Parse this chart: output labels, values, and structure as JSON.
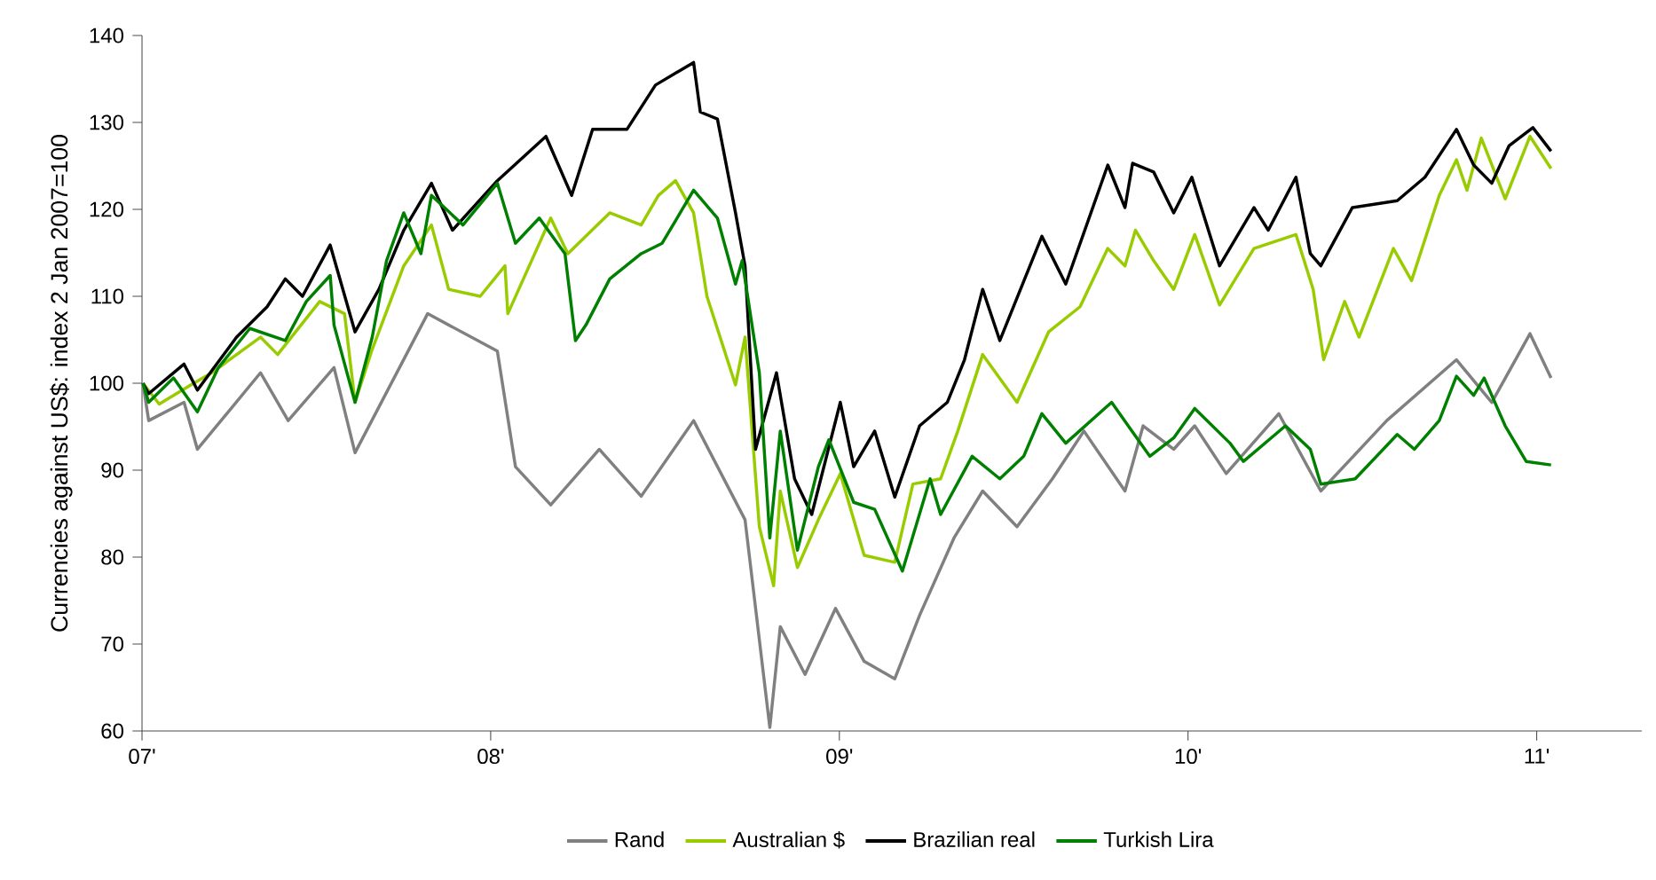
{
  "chart_data": {
    "type": "line",
    "ylabel": "Currencies against US$: index 2 Jan 2007=100",
    "xlim": [
      "2007-01-01",
      "2011-04-21"
    ],
    "xticks": [
      {
        "value": "2007-01-01",
        "label": "07'"
      },
      {
        "value": "2008-01-01",
        "label": "08'"
      },
      {
        "value": "2009-01-01",
        "label": "09'"
      },
      {
        "value": "2010-01-01",
        "label": "10'"
      },
      {
        "value": "2011-01-01",
        "label": "11'"
      }
    ],
    "ylim": [
      60,
      140
    ],
    "yticks": [
      60,
      70,
      80,
      90,
      100,
      110,
      120,
      130,
      140
    ],
    "grid": false,
    "legend": "bottom",
    "marker": "none",
    "line_style": "solid",
    "series": [
      {
        "name": "Rand",
        "color": "#808080",
        "x": [
          "2007-01-02",
          "2007-01-08",
          "2007-02-14",
          "2007-02-28",
          "2007-05-05",
          "2007-06-03",
          "2007-07-21",
          "2007-08-12",
          "2007-10-27",
          "2008-01-08",
          "2008-01-27",
          "2008-03-04",
          "2008-04-24",
          "2008-06-07",
          "2008-08-01",
          "2008-09-24",
          "2008-10-20",
          "2008-10-31",
          "2008-11-26",
          "2008-12-28",
          "2009-01-27",
          "2009-02-28",
          "2009-03-26",
          "2009-05-01",
          "2009-05-31",
          "2009-07-06",
          "2009-08-12",
          "2009-09-14",
          "2009-10-27",
          "2009-11-15",
          "2009-12-17",
          "2010-01-08",
          "2010-02-10",
          "2010-04-06",
          "2010-05-20",
          "2010-07-28",
          "2010-10-09",
          "2010-11-15",
          "2010-12-25",
          "2011-01-16"
        ],
        "values": [
          100,
          95.7,
          97.8,
          92.4,
          101.2,
          95.7,
          101.8,
          92.0,
          108.0,
          103.7,
          90.4,
          86,
          92.4,
          87,
          95.7,
          84.3,
          60.4,
          72,
          66.5,
          74.1,
          68,
          66,
          73.3,
          82.2,
          87.6,
          83.5,
          89,
          94.5,
          87.6,
          95.1,
          92.4,
          95.1,
          89.6,
          96.5,
          87.6,
          95.7,
          102.7,
          97.8,
          105.7,
          100.6
        ]
      },
      {
        "name": "Australian $",
        "color": "#99cc00",
        "x": [
          "2007-01-02",
          "2007-01-19",
          "2007-02-21",
          "2007-03-15",
          "2007-05-05",
          "2007-05-23",
          "2007-07-06",
          "2007-08-01",
          "2007-08-12",
          "2007-08-30",
          "2007-10-02",
          "2007-10-31",
          "2007-11-18",
          "2007-12-21",
          "2008-01-16",
          "2008-01-19",
          "2008-03-04",
          "2008-03-22",
          "2008-05-05",
          "2008-06-07",
          "2008-06-25",
          "2008-07-13",
          "2008-08-01",
          "2008-08-15",
          "2008-09-14",
          "2008-09-24",
          "2008-10-09",
          "2008-10-24",
          "2008-10-31",
          "2008-11-18",
          "2008-12-10",
          "2009-01-02",
          "2009-01-27",
          "2009-02-28",
          "2009-03-19",
          "2009-04-17",
          "2009-05-05",
          "2009-05-31",
          "2009-07-06",
          "2009-08-08",
          "2009-09-10",
          "2009-10-09",
          "2009-10-27",
          "2009-11-07",
          "2009-11-26",
          "2009-12-17",
          "2010-01-08",
          "2010-02-03",
          "2010-03-11",
          "2010-04-24",
          "2010-05-12",
          "2010-05-23",
          "2010-06-14",
          "2010-06-29",
          "2010-08-04",
          "2010-08-23",
          "2010-09-21",
          "2010-10-09",
          "2010-10-20",
          "2010-11-04",
          "2010-11-29",
          "2010-12-25",
          "2011-01-16"
        ],
        "values": [
          100,
          97.6,
          99.8,
          101.2,
          105.3,
          103.3,
          109.4,
          108,
          97.8,
          103.9,
          113.5,
          118.2,
          110.8,
          110,
          113.5,
          108,
          119,
          114.9,
          119.6,
          118.2,
          121.6,
          123.3,
          119.6,
          110,
          99.8,
          105.3,
          83.5,
          76.7,
          87.6,
          78.8,
          84.3,
          89.6,
          80.2,
          79.4,
          88.4,
          89,
          94.5,
          103.3,
          97.8,
          105.9,
          108.8,
          115.5,
          113.5,
          117.6,
          114.1,
          110.8,
          117.1,
          109,
          115.5,
          117.1,
          110.8,
          102.7,
          109.4,
          105.3,
          115.5,
          111.8,
          121.6,
          125.7,
          122.2,
          128.2,
          121.2,
          128.4,
          124.7
        ]
      },
      {
        "name": "Brazilian real",
        "color": "#000000",
        "x": [
          "2007-01-02",
          "2007-01-08",
          "2007-02-14",
          "2007-02-28",
          "2007-04-10",
          "2007-05-12",
          "2007-05-31",
          "2007-06-18",
          "2007-07-17",
          "2007-08-12",
          "2007-09-06",
          "2007-10-02",
          "2007-10-31",
          "2007-11-22",
          "2008-01-08",
          "2008-02-28",
          "2008-03-26",
          "2008-04-17",
          "2008-05-23",
          "2008-06-22",
          "2008-08-01",
          "2008-08-08",
          "2008-08-26",
          "2008-09-14",
          "2008-09-24",
          "2008-10-05",
          "2008-10-27",
          "2008-11-15",
          "2008-12-03",
          "2009-01-02",
          "2009-01-16",
          "2009-02-07",
          "2009-02-28",
          "2009-03-26",
          "2009-04-24",
          "2009-05-12",
          "2009-05-31",
          "2009-06-18",
          "2009-08-01",
          "2009-08-26",
          "2009-10-09",
          "2009-10-27",
          "2009-11-04",
          "2009-11-26",
          "2009-12-17",
          "2010-01-05",
          "2010-02-03",
          "2010-03-11",
          "2010-03-26",
          "2010-04-24",
          "2010-05-09",
          "2010-05-20",
          "2010-06-22",
          "2010-08-08",
          "2010-09-06",
          "2010-10-09",
          "2010-10-27",
          "2010-11-15",
          "2010-12-03",
          "2010-12-28",
          "2011-01-16"
        ],
        "values": [
          100,
          98.8,
          102.2,
          99.2,
          105.3,
          108.8,
          112,
          110,
          115.9,
          105.9,
          110.8,
          117.6,
          123,
          117.6,
          123.3,
          128.4,
          121.6,
          129.2,
          129.2,
          134.3,
          136.9,
          131.2,
          130.4,
          119.6,
          113.5,
          92.4,
          101.2,
          89,
          84.9,
          97.8,
          90.4,
          94.5,
          86.9,
          95.1,
          97.8,
          102.7,
          110.8,
          104.9,
          116.9,
          111.4,
          125.1,
          120.2,
          125.3,
          124.3,
          119.6,
          123.7,
          113.5,
          120.2,
          117.6,
          123.7,
          114.9,
          113.5,
          120.2,
          121,
          123.7,
          129.2,
          125.1,
          123,
          127.3,
          129.4,
          126.7
        ]
      },
      {
        "name": "Turkish Lira",
        "color": "#008000",
        "x": [
          "2007-01-02",
          "2007-01-08",
          "2007-02-03",
          "2007-02-28",
          "2007-03-22",
          "2007-04-24",
          "2007-05-31",
          "2007-06-22",
          "2007-07-17",
          "2007-07-21",
          "2007-08-12",
          "2007-08-30",
          "2007-09-14",
          "2007-10-02",
          "2007-10-20",
          "2007-10-31",
          "2007-12-03",
          "2008-01-08",
          "2008-01-27",
          "2008-02-21",
          "2008-03-19",
          "2008-03-30",
          "2008-04-10",
          "2008-05-05",
          "2008-06-07",
          "2008-06-29",
          "2008-08-01",
          "2008-08-26",
          "2008-09-14",
          "2008-09-21",
          "2008-10-09",
          "2008-10-20",
          "2008-10-31",
          "2008-11-18",
          "2008-12-10",
          "2008-12-21",
          "2009-01-16",
          "2009-02-07",
          "2009-03-08",
          "2009-04-06",
          "2009-04-17",
          "2009-05-20",
          "2009-06-18",
          "2009-07-13",
          "2009-08-01",
          "2009-08-26",
          "2009-10-13",
          "2009-11-22",
          "2009-12-17",
          "2010-01-08",
          "2010-02-14",
          "2010-02-28",
          "2010-04-13",
          "2010-05-09",
          "2010-05-20",
          "2010-06-25",
          "2010-08-08",
          "2010-08-26",
          "2010-09-21",
          "2010-10-09",
          "2010-10-27",
          "2010-11-07",
          "2010-11-29",
          "2010-12-21",
          "2011-01-16"
        ],
        "values": [
          100,
          97.8,
          100.6,
          96.7,
          101.8,
          106.3,
          104.9,
          109.4,
          112.4,
          106.7,
          97.8,
          105.3,
          114.1,
          119.6,
          114.9,
          121.6,
          118.2,
          123,
          116.1,
          119,
          114.9,
          104.9,
          106.7,
          112,
          114.9,
          116.1,
          122.2,
          119,
          111.4,
          114.1,
          101.2,
          82.2,
          94.5,
          80.8,
          90.4,
          93.5,
          86.3,
          85.5,
          78.4,
          89,
          84.9,
          91.6,
          89,
          91.6,
          96.5,
          93.1,
          97.8,
          91.6,
          93.7,
          97.1,
          93.1,
          91,
          95.1,
          92.4,
          88.4,
          89,
          94.1,
          92.4,
          95.7,
          100.8,
          98.6,
          100.6,
          95.1,
          91,
          90.6
        ]
      }
    ]
  }
}
